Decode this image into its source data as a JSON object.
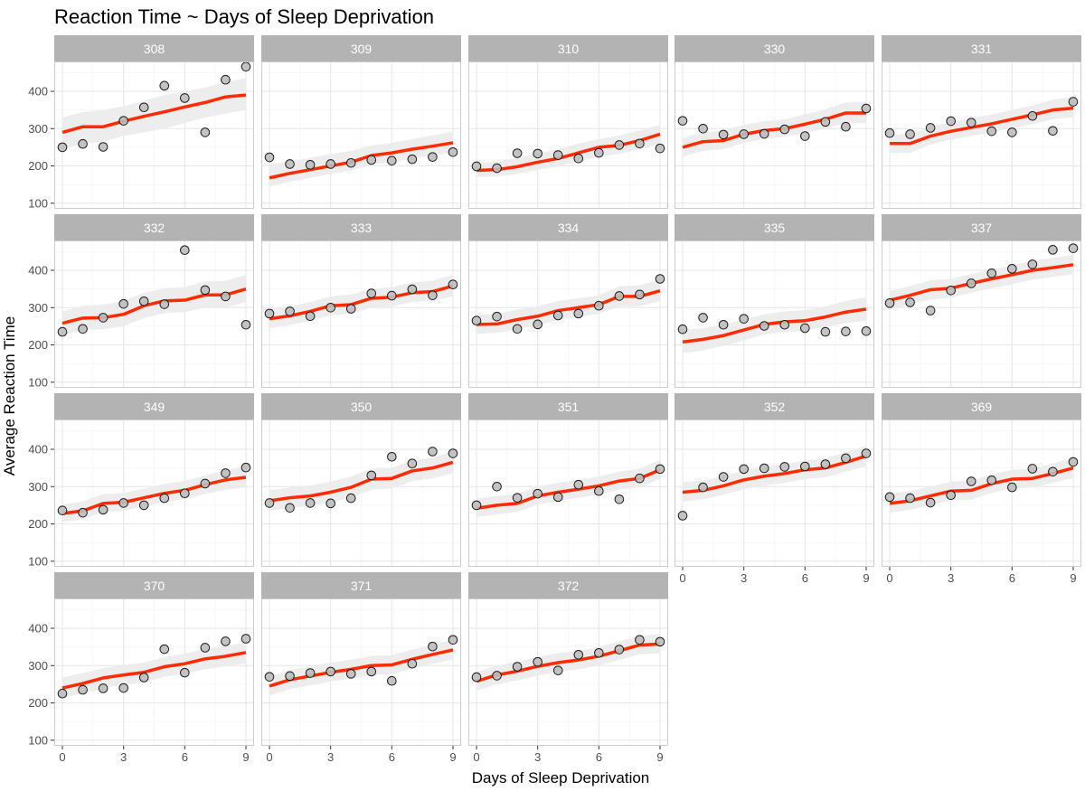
{
  "chart_data": {
    "type": "faceted-scatter-line",
    "title": "Reaction Time ~ Days of Sleep Deprivation",
    "xlabel": "Days of Sleep Deprivation",
    "ylabel": "Average Reaction Time",
    "xlim": [
      -0.4,
      9.4
    ],
    "ylim": [
      85,
      480
    ],
    "x_ticks": [
      "0",
      "3",
      "6",
      "9"
    ],
    "y_ticks": [
      "100",
      "200",
      "300",
      "400"
    ],
    "grid": true,
    "colors": {
      "fit_line": "#ff2a00",
      "ribbon": "#ebebeb",
      "point_fill": "#bdbdbd",
      "point_stroke": "#1a1a1a",
      "strip": "#b3b3b3",
      "grid": "#e6e6e6",
      "panel_border": "#cccccc"
    },
    "x": [
      0,
      1,
      2,
      3,
      4,
      5,
      6,
      7,
      8,
      9
    ],
    "panels": [
      {
        "subject": "308",
        "points": [
          250,
          259,
          251,
          321,
          357,
          415,
          382,
          290,
          431,
          466
        ],
        "fit": [
          290,
          305,
          305,
          320,
          333,
          345,
          358,
          370,
          385,
          390
        ],
        "band": [
          [
            245,
            330
          ],
          [
            260,
            345
          ],
          [
            265,
            350
          ],
          [
            280,
            360
          ],
          [
            290,
            375
          ],
          [
            300,
            390
          ],
          [
            315,
            400
          ],
          [
            330,
            410
          ],
          [
            340,
            425
          ],
          [
            350,
            435
          ]
        ]
      },
      {
        "subject": "309",
        "points": [
          223,
          205,
          203,
          205,
          208,
          216,
          214,
          218,
          224,
          237
        ],
        "fit": [
          168,
          180,
          190,
          200,
          210,
          228,
          235,
          245,
          253,
          262
        ],
        "band": [
          [
            145,
            205
          ],
          [
            158,
            212
          ],
          [
            168,
            222
          ],
          [
            178,
            232
          ],
          [
            188,
            240
          ],
          [
            203,
            255
          ],
          [
            210,
            262
          ],
          [
            220,
            272
          ],
          [
            228,
            282
          ],
          [
            235,
            292
          ]
        ]
      },
      {
        "subject": "310",
        "points": [
          199,
          194,
          234,
          233,
          229,
          220,
          235,
          256,
          260,
          247
        ],
        "fit": [
          188,
          190,
          198,
          210,
          220,
          235,
          250,
          255,
          268,
          285
        ],
        "band": [
          [
            170,
            208
          ],
          [
            172,
            212
          ],
          [
            178,
            222
          ],
          [
            190,
            233
          ],
          [
            198,
            245
          ],
          [
            212,
            260
          ],
          [
            225,
            272
          ],
          [
            232,
            282
          ],
          [
            245,
            295
          ],
          [
            258,
            310
          ]
        ]
      },
      {
        "subject": "330",
        "points": [
          321,
          300,
          284,
          285,
          286,
          298,
          280,
          318,
          305,
          354
        ],
        "fit": [
          250,
          265,
          268,
          285,
          295,
          300,
          312,
          325,
          342,
          342
        ],
        "band": [
          [
            225,
            275
          ],
          [
            240,
            290
          ],
          [
            245,
            295
          ],
          [
            262,
            310
          ],
          [
            272,
            320
          ],
          [
            278,
            325
          ],
          [
            288,
            338
          ],
          [
            300,
            352
          ],
          [
            315,
            370
          ],
          [
            315,
            372
          ]
        ]
      },
      {
        "subject": "331",
        "points": [
          288,
          285,
          302,
          320,
          316,
          293,
          290,
          334,
          294,
          372
        ],
        "fit": [
          260,
          260,
          280,
          293,
          303,
          313,
          325,
          337,
          350,
          355
        ],
        "band": [
          [
            235,
            285
          ],
          [
            235,
            285
          ],
          [
            258,
            305
          ],
          [
            270,
            318
          ],
          [
            280,
            328
          ],
          [
            290,
            338
          ],
          [
            302,
            350
          ],
          [
            312,
            362
          ],
          [
            325,
            378
          ],
          [
            330,
            385
          ]
        ]
      },
      {
        "subject": "332",
        "points": [
          235,
          243,
          273,
          310,
          317,
          309,
          454,
          347,
          330,
          254
        ],
        "fit": [
          258,
          272,
          273,
          282,
          305,
          318,
          320,
          334,
          334,
          350
        ],
        "band": [
          [
            225,
            290
          ],
          [
            240,
            305
          ],
          [
            242,
            308
          ],
          [
            250,
            318
          ],
          [
            272,
            340
          ],
          [
            285,
            352
          ],
          [
            288,
            355
          ],
          [
            300,
            370
          ],
          [
            300,
            372
          ],
          [
            315,
            388
          ]
        ]
      },
      {
        "subject": "333",
        "points": [
          284,
          290,
          277,
          300,
          297,
          338,
          332,
          349,
          333,
          362
        ],
        "fit": [
          270,
          278,
          290,
          305,
          308,
          325,
          328,
          340,
          343,
          358
        ],
        "band": [
          [
            245,
            295
          ],
          [
            253,
            303
          ],
          [
            265,
            315
          ],
          [
            280,
            330
          ],
          [
            283,
            335
          ],
          [
            300,
            350
          ],
          [
            303,
            355
          ],
          [
            315,
            368
          ],
          [
            318,
            372
          ],
          [
            330,
            388
          ]
        ]
      },
      {
        "subject": "334",
        "points": [
          265,
          276,
          243,
          255,
          279,
          284,
          305,
          331,
          335,
          377
        ],
        "fit": [
          255,
          256,
          268,
          277,
          292,
          300,
          308,
          330,
          330,
          345
        ],
        "band": [
          [
            230,
            282
          ],
          [
            232,
            283
          ],
          [
            243,
            295
          ],
          [
            252,
            303
          ],
          [
            267,
            318
          ],
          [
            275,
            325
          ],
          [
            283,
            333
          ],
          [
            303,
            357
          ],
          [
            303,
            360
          ],
          [
            318,
            375
          ]
        ]
      },
      {
        "subject": "335",
        "points": [
          242,
          273,
          254,
          270,
          251,
          254,
          245,
          235,
          236,
          237
        ],
        "fit": [
          208,
          215,
          225,
          240,
          255,
          262,
          265,
          275,
          288,
          296
        ],
        "band": [
          [
            178,
            240
          ],
          [
            185,
            245
          ],
          [
            198,
            255
          ],
          [
            212,
            268
          ],
          [
            228,
            282
          ],
          [
            235,
            290
          ],
          [
            238,
            293
          ],
          [
            248,
            303
          ],
          [
            258,
            318
          ],
          [
            265,
            328
          ]
        ]
      },
      {
        "subject": "337",
        "points": [
          312,
          314,
          292,
          346,
          365,
          392,
          404,
          416,
          455,
          459
        ],
        "fit": [
          320,
          333,
          348,
          352,
          365,
          377,
          388,
          400,
          407,
          415
        ],
        "band": [
          [
            295,
            345
          ],
          [
            308,
            358
          ],
          [
            322,
            373
          ],
          [
            327,
            377
          ],
          [
            340,
            390
          ],
          [
            352,
            402
          ],
          [
            363,
            413
          ],
          [
            375,
            426
          ],
          [
            382,
            433
          ],
          [
            390,
            442
          ]
        ]
      },
      {
        "subject": "349",
        "points": [
          236,
          230,
          238,
          256,
          250,
          269,
          282,
          308,
          336,
          351
        ],
        "fit": [
          228,
          235,
          255,
          258,
          270,
          282,
          290,
          305,
          318,
          325
        ],
        "band": [
          [
            205,
            252
          ],
          [
            212,
            260
          ],
          [
            232,
            280
          ],
          [
            235,
            283
          ],
          [
            247,
            295
          ],
          [
            258,
            307
          ],
          [
            266,
            315
          ],
          [
            280,
            330
          ],
          [
            292,
            345
          ],
          [
            298,
            352
          ]
        ]
      },
      {
        "subject": "350",
        "points": [
          256,
          243,
          256,
          255,
          269,
          330,
          380,
          362,
          394,
          389
        ],
        "fit": [
          262,
          270,
          275,
          285,
          298,
          320,
          322,
          342,
          350,
          365
        ],
        "band": [
          [
            235,
            290
          ],
          [
            243,
            298
          ],
          [
            248,
            303
          ],
          [
            258,
            313
          ],
          [
            270,
            327
          ],
          [
            292,
            348
          ],
          [
            295,
            350
          ],
          [
            315,
            370
          ],
          [
            322,
            378
          ],
          [
            336,
            395
          ]
        ]
      },
      {
        "subject": "351",
        "points": [
          250,
          300,
          270,
          281,
          272,
          305,
          288,
          266,
          322,
          347
        ],
        "fit": [
          242,
          250,
          255,
          275,
          285,
          293,
          302,
          315,
          322,
          345
        ],
        "band": [
          [
            218,
            268
          ],
          [
            226,
            275
          ],
          [
            232,
            280
          ],
          [
            252,
            300
          ],
          [
            262,
            310
          ],
          [
            270,
            318
          ],
          [
            278,
            327
          ],
          [
            292,
            340
          ],
          [
            298,
            348
          ],
          [
            320,
            372
          ]
        ]
      },
      {
        "subject": "352",
        "points": [
          222,
          298,
          326,
          347,
          349,
          353,
          354,
          360,
          376,
          389
        ],
        "fit": [
          285,
          290,
          302,
          318,
          328,
          335,
          345,
          350,
          365,
          382
        ],
        "band": [
          [
            260,
            312
          ],
          [
            266,
            316
          ],
          [
            278,
            328
          ],
          [
            293,
            343
          ],
          [
            303,
            353
          ],
          [
            310,
            360
          ],
          [
            320,
            370
          ],
          [
            325,
            376
          ],
          [
            340,
            392
          ],
          [
            355,
            410
          ]
        ]
      },
      {
        "subject": "369",
        "points": [
          272,
          269,
          257,
          277,
          314,
          317,
          298,
          348,
          340,
          366
        ],
        "fit": [
          255,
          262,
          275,
          288,
          290,
          308,
          320,
          322,
          335,
          350
        ],
        "band": [
          [
            230,
            282
          ],
          [
            238,
            288
          ],
          [
            250,
            300
          ],
          [
            263,
            313
          ],
          [
            265,
            316
          ],
          [
            283,
            333
          ],
          [
            295,
            345
          ],
          [
            298,
            348
          ],
          [
            310,
            362
          ],
          [
            323,
            378
          ]
        ]
      },
      {
        "subject": "370",
        "points": [
          225,
          235,
          239,
          240,
          268,
          344,
          281,
          348,
          365,
          372
        ],
        "fit": [
          240,
          252,
          267,
          275,
          282,
          297,
          305,
          318,
          325,
          335
        ],
        "band": [
          [
            213,
            268
          ],
          [
            225,
            280
          ],
          [
            240,
            293
          ],
          [
            248,
            302
          ],
          [
            255,
            308
          ],
          [
            270,
            323
          ],
          [
            278,
            332
          ],
          [
            290,
            345
          ],
          [
            298,
            352
          ],
          [
            306,
            363
          ]
        ]
      },
      {
        "subject": "371",
        "points": [
          270,
          272,
          280,
          284,
          278,
          284,
          259,
          305,
          351,
          369
        ],
        "fit": [
          245,
          262,
          272,
          282,
          290,
          300,
          302,
          317,
          330,
          342
        ],
        "band": [
          [
            220,
            272
          ],
          [
            237,
            288
          ],
          [
            247,
            298
          ],
          [
            257,
            308
          ],
          [
            265,
            316
          ],
          [
            275,
            326
          ],
          [
            277,
            328
          ],
          [
            292,
            343
          ],
          [
            305,
            356
          ],
          [
            316,
            370
          ]
        ]
      },
      {
        "subject": "372",
        "points": [
          269,
          273,
          297,
          310,
          287,
          329,
          334,
          343,
          369,
          364
        ],
        "fit": [
          258,
          275,
          285,
          298,
          308,
          315,
          325,
          340,
          355,
          358
        ],
        "band": [
          [
            233,
            283
          ],
          [
            250,
            300
          ],
          [
            260,
            310
          ],
          [
            273,
            323
          ],
          [
            283,
            333
          ],
          [
            290,
            340
          ],
          [
            300,
            350
          ],
          [
            315,
            365
          ],
          [
            330,
            380
          ],
          [
            333,
            385
          ]
        ]
      }
    ]
  }
}
